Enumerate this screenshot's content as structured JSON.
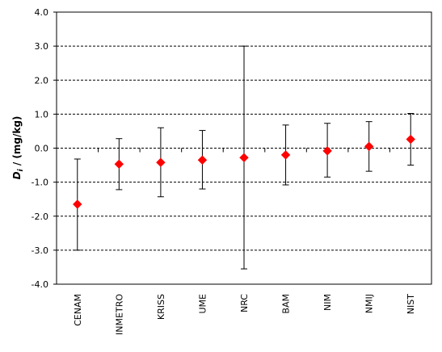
{
  "chart_data": {
    "type": "scatter",
    "title": "",
    "xlabel": "",
    "ylabel": "D",
    "ylabel_subscript": "i",
    "ylabel_suffix": " / (mg/kg)",
    "ylim": [
      -4.0,
      4.0
    ],
    "yticks": [
      "4.0",
      "3.0",
      "2.0",
      "1.0",
      "0.0",
      "-1.0",
      "-2.0",
      "-3.0",
      "-4.0"
    ],
    "ytick_values": [
      4,
      3,
      2,
      1,
      0,
      -1,
      -2,
      -3,
      -4
    ],
    "grid": "horizontal dashed",
    "categories": [
      "CENAM",
      "INMETRO",
      "KRISS",
      "UME",
      "NRC",
      "BAM",
      "NIM",
      "NMIJ",
      "NIST"
    ],
    "series": [
      {
        "values": [
          -1.65,
          -0.47,
          -0.42,
          -0.35,
          -0.28,
          -0.2,
          -0.08,
          0.05,
          0.26
        ],
        "err_low": [
          -3.0,
          -1.22,
          -1.43,
          -1.2,
          -3.55,
          -1.08,
          -0.85,
          -0.68,
          -0.5
        ],
        "err_high": [
          -0.32,
          0.28,
          0.6,
          0.52,
          3.0,
          0.68,
          0.73,
          0.78,
          1.02
        ],
        "marker": "diamond",
        "color": "#ff0000"
      }
    ],
    "zero_line_ticks": true
  }
}
